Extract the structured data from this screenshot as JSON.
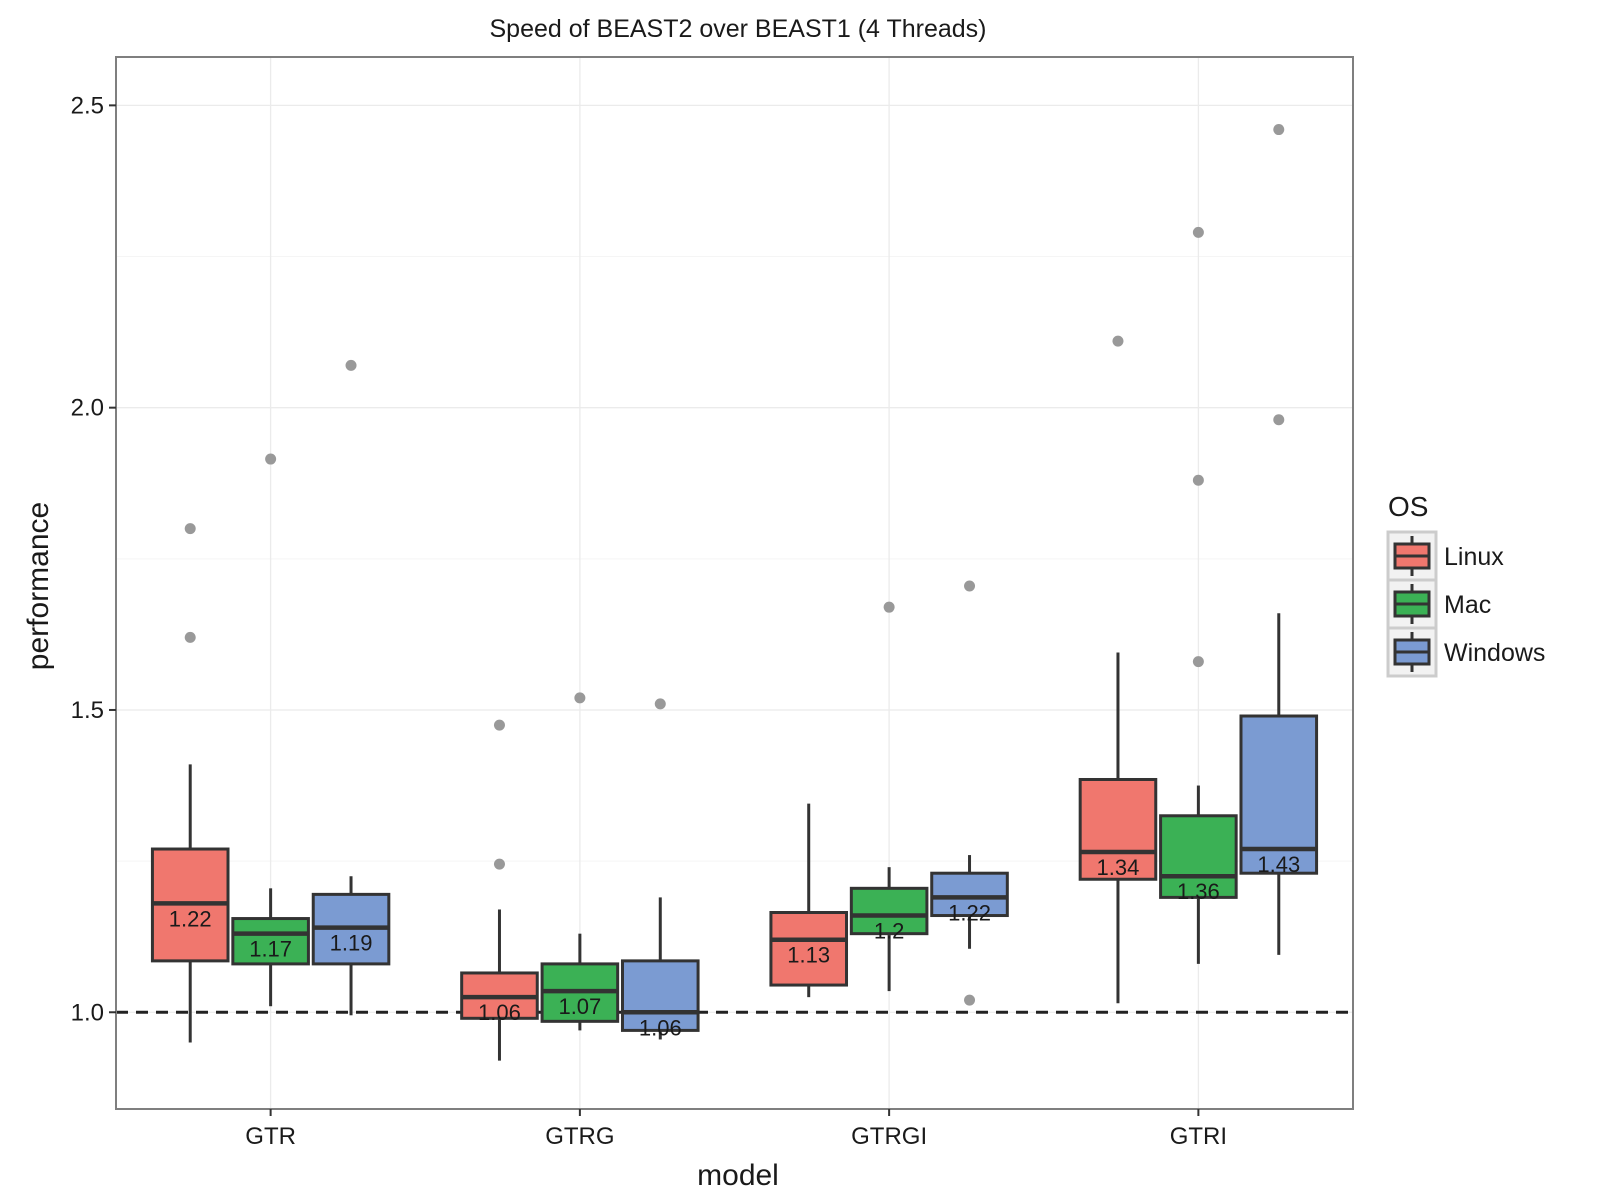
{
  "chart_data": {
    "type": "box",
    "title": "Speed of BEAST2 over BEAST1 (4 Threads)",
    "xlabel": "model",
    "ylabel": "performance",
    "ylim": [
      0.84,
      2.58
    ],
    "yticks": [
      1.0,
      1.5,
      2.0,
      2.5
    ],
    "ytick_labels": [
      "1.0",
      "1.5",
      "2.0",
      "2.5"
    ],
    "reference_line": 1.0,
    "categories": [
      "GTR",
      "GTRG",
      "GTRGI",
      "GTRI"
    ],
    "legend": {
      "title": "OS",
      "placement": "right",
      "entries": [
        "Linux",
        "Mac",
        "Windows"
      ]
    },
    "colors": {
      "Linux": "#f0776e",
      "Mac": "#3bb155",
      "Windows": "#7b9bd2",
      "outlier": "#999999",
      "box_stroke": "#333333",
      "grid": "#ebebeb",
      "panel_border": "#7f7f7f"
    },
    "grid": true,
    "series": [
      {
        "name": "Linux",
        "boxes": [
          {
            "category": "GTR",
            "q1": 1.085,
            "median": 1.18,
            "q3": 1.27,
            "whisker_low": 0.95,
            "whisker_high": 1.41,
            "outliers": [
              1.62,
              1.8
            ],
            "label": "1.22"
          },
          {
            "category": "GTRG",
            "q1": 0.99,
            "median": 1.025,
            "q3": 1.065,
            "whisker_low": 0.92,
            "whisker_high": 1.17,
            "outliers": [
              1.245,
              1.475
            ],
            "label": "1.06"
          },
          {
            "category": "GTRGI",
            "q1": 1.045,
            "median": 1.12,
            "q3": 1.165,
            "whisker_low": 1.025,
            "whisker_high": 1.345,
            "outliers": [],
            "label": "1.13"
          },
          {
            "category": "GTRI",
            "q1": 1.22,
            "median": 1.265,
            "q3": 1.385,
            "whisker_low": 1.015,
            "whisker_high": 1.595,
            "outliers": [
              2.11
            ],
            "label": "1.34"
          }
        ]
      },
      {
        "name": "Mac",
        "boxes": [
          {
            "category": "GTR",
            "q1": 1.08,
            "median": 1.13,
            "q3": 1.155,
            "whisker_low": 1.01,
            "whisker_high": 1.205,
            "outliers": [
              1.915
            ],
            "label": "1.17"
          },
          {
            "category": "GTRG",
            "q1": 0.985,
            "median": 1.035,
            "q3": 1.08,
            "whisker_low": 0.97,
            "whisker_high": 1.13,
            "outliers": [
              1.52
            ],
            "label": "1.07"
          },
          {
            "category": "GTRGI",
            "q1": 1.13,
            "median": 1.16,
            "q3": 1.205,
            "whisker_low": 1.035,
            "whisker_high": 1.24,
            "outliers": [
              1.67
            ],
            "label": "1.2"
          },
          {
            "category": "GTRI",
            "q1": 1.19,
            "median": 1.225,
            "q3": 1.325,
            "whisker_low": 1.08,
            "whisker_high": 1.375,
            "outliers": [
              1.58,
              1.88,
              2.29
            ],
            "label": "1.36"
          }
        ]
      },
      {
        "name": "Windows",
        "boxes": [
          {
            "category": "GTR",
            "q1": 1.08,
            "median": 1.14,
            "q3": 1.195,
            "whisker_low": 0.995,
            "whisker_high": 1.225,
            "outliers": [
              2.07
            ],
            "label": "1.19"
          },
          {
            "category": "GTRG",
            "q1": 0.97,
            "median": 1.0,
            "q3": 1.085,
            "whisker_low": 0.955,
            "whisker_high": 1.19,
            "outliers": [
              1.51
            ],
            "label": "1.06"
          },
          {
            "category": "GTRGI",
            "q1": 1.16,
            "median": 1.19,
            "q3": 1.23,
            "whisker_low": 1.105,
            "whisker_high": 1.26,
            "outliers": [
              1.02,
              1.705
            ],
            "label": "1.22"
          },
          {
            "category": "GTRI",
            "q1": 1.23,
            "median": 1.27,
            "q3": 1.49,
            "whisker_low": 1.095,
            "whisker_high": 1.66,
            "outliers": [
              1.98,
              2.46
            ],
            "label": "1.43"
          }
        ]
      }
    ]
  }
}
